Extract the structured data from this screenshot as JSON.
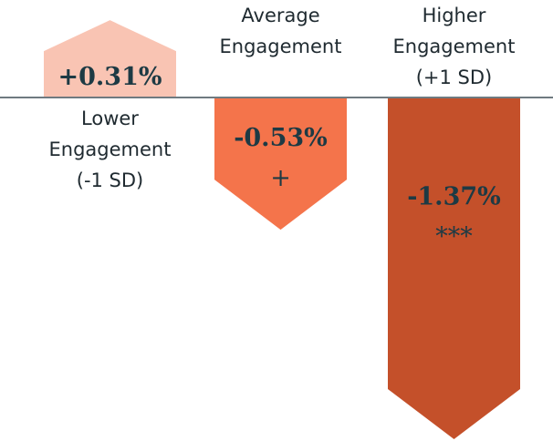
{
  "chart_data": {
    "type": "arrow-bar",
    "categories": [
      [
        "Lower",
        "Engagement",
        "(-1 SD)"
      ],
      [
        "Average",
        "Engagement"
      ],
      [
        "Higher",
        "Engagement",
        "(+1 SD)"
      ]
    ],
    "values": [
      0.31,
      -0.53,
      -1.37
    ],
    "value_labels": [
      "+0.31%",
      "-0.53%",
      "-1.37%"
    ],
    "significance": [
      null,
      "+",
      "***"
    ],
    "colors": [
      "#f9c4b3",
      "#f4744b",
      "#c4502a"
    ]
  }
}
